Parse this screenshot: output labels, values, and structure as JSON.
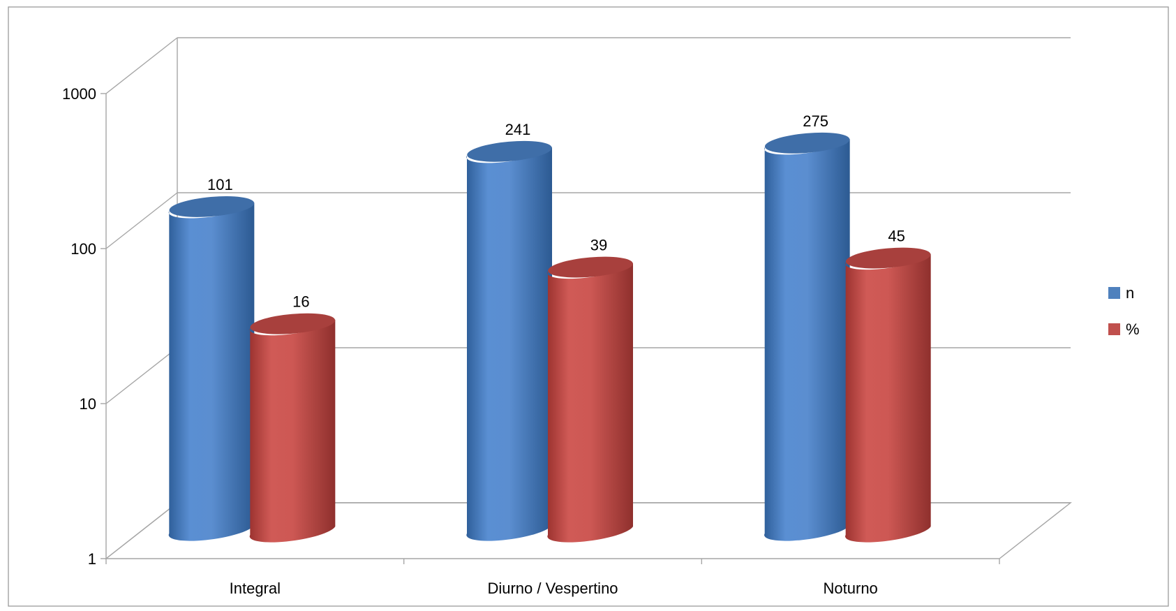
{
  "chart_data": {
    "type": "bar",
    "categories": [
      "Integral",
      "Diurno / Vespertino",
      "Noturno"
    ],
    "series": [
      {
        "name": "n",
        "values": [
          101,
          241,
          275
        ],
        "color": "#4f81bd"
      },
      {
        "name": "%",
        "values": [
          16,
          39,
          45
        ],
        "color": "#c0504d"
      }
    ],
    "y_scale": "log",
    "ylim": [
      1,
      1000
    ],
    "y_ticks": [
      "1",
      "10",
      "100",
      "1000"
    ],
    "grid": true,
    "legend_position": "right",
    "style": "3d-cylinder"
  }
}
